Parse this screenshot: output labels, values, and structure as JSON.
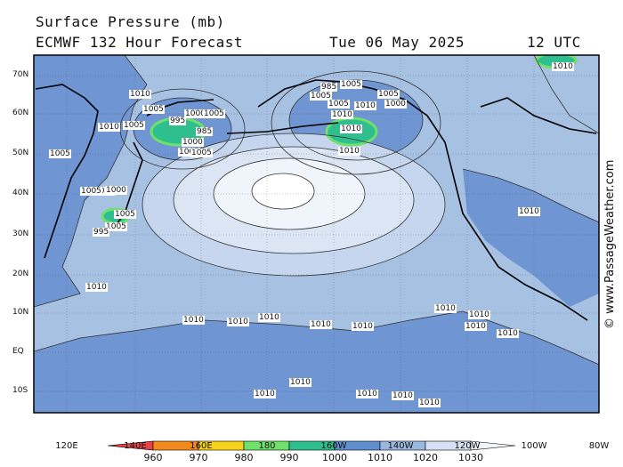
{
  "header": {
    "title": "Surface Pressure (mb)",
    "model": "ECMWF 132 Hour Forecast",
    "date": "Tue 06 May 2025",
    "time": "12 UTC"
  },
  "credit": "© www.PassageWeather.com",
  "lat_labels": [
    "70N",
    "60N",
    "50N",
    "40N",
    "30N",
    "20N",
    "10N",
    "EQ",
    "10S"
  ],
  "lon_labels": [
    "120E",
    "140E",
    "160E",
    "180",
    "160W",
    "140W",
    "120W",
    "100W",
    "80W"
  ],
  "colorbar": {
    "ticks": [
      "960",
      "970",
      "980",
      "990",
      "1000",
      "1010",
      "1020",
      "1030"
    ],
    "colors": [
      "#e8434a",
      "#f28a1e",
      "#f7d31c",
      "#6fe06c",
      "#2fbf8f",
      "#5f8fcf",
      "#9ab8e0",
      "#d6e2f3"
    ]
  },
  "fill_colors": {
    "ocean_1010_1020": "#a7c1e3",
    "land_low": "#6f95d2",
    "band_1020": "#c5d6ee",
    "band_1025": "#dbe5f4",
    "band_1030": "#f0f4fb",
    "high_center": "#ffffff",
    "low_green": "#2fbf8f",
    "low_ring": "#6fe06c"
  },
  "contour_labels": [
    {
      "text": "1010"
    },
    {
      "text": "1005"
    },
    {
      "text": "995"
    },
    {
      "text": "1000"
    },
    {
      "text": "1005"
    },
    {
      "text": "985"
    },
    {
      "text": "1000"
    },
    {
      "text": "1005"
    },
    {
      "text": "1005"
    },
    {
      "text": "1010"
    },
    {
      "text": "1005"
    },
    {
      "text": "1005"
    },
    {
      "text": "1000"
    },
    {
      "text": "1005"
    },
    {
      "text": "1000"
    },
    {
      "text": "1005"
    },
    {
      "text": "1005"
    },
    {
      "text": "995"
    },
    {
      "text": "985"
    },
    {
      "text": "1005"
    },
    {
      "text": "1005"
    },
    {
      "text": "1005"
    },
    {
      "text": "1005"
    },
    {
      "text": "1000"
    },
    {
      "text": "1010"
    },
    {
      "text": "1010"
    },
    {
      "text": "1010"
    },
    {
      "text": "1010"
    },
    {
      "text": "1010"
    },
    {
      "text": "1010"
    },
    {
      "text": "1010"
    },
    {
      "text": "1010"
    },
    {
      "text": "1010"
    },
    {
      "text": "1010"
    },
    {
      "text": "1010"
    },
    {
      "text": "1010"
    },
    {
      "text": "1010"
    },
    {
      "text": "1010"
    },
    {
      "text": "1010"
    },
    {
      "text": "1010"
    },
    {
      "text": "1010"
    },
    {
      "text": "1010"
    },
    {
      "text": "1010"
    },
    {
      "text": "1010"
    },
    {
      "text": "1010"
    }
  ]
}
